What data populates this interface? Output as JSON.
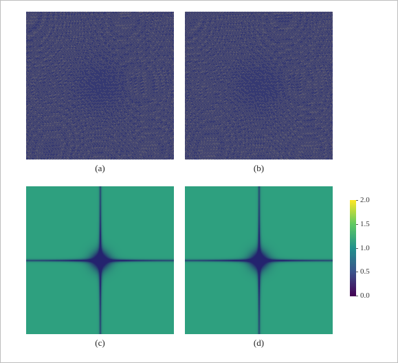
{
  "panels": [
    {
      "id": "a",
      "label": "(a)",
      "kind": "pattern"
    },
    {
      "id": "b",
      "label": "(b)",
      "kind": "pattern"
    },
    {
      "id": "c",
      "label": "(c)",
      "kind": "field"
    },
    {
      "id": "d",
      "label": "(d)",
      "kind": "field"
    }
  ],
  "colorbar": {
    "min": 0.0,
    "max": 2.0,
    "ticks": [
      "0.0",
      "0.5",
      "1.0",
      "1.5",
      "2.0"
    ],
    "colormap": [
      "#440154",
      "#3b528b",
      "#21918c",
      "#5ec962",
      "#fde725"
    ]
  },
  "colors": {
    "pattern_base": "#2a2f72",
    "pattern_highlight": "#b7a770",
    "field_flat": "#2ea07f",
    "field_dark": "#24236e"
  }
}
